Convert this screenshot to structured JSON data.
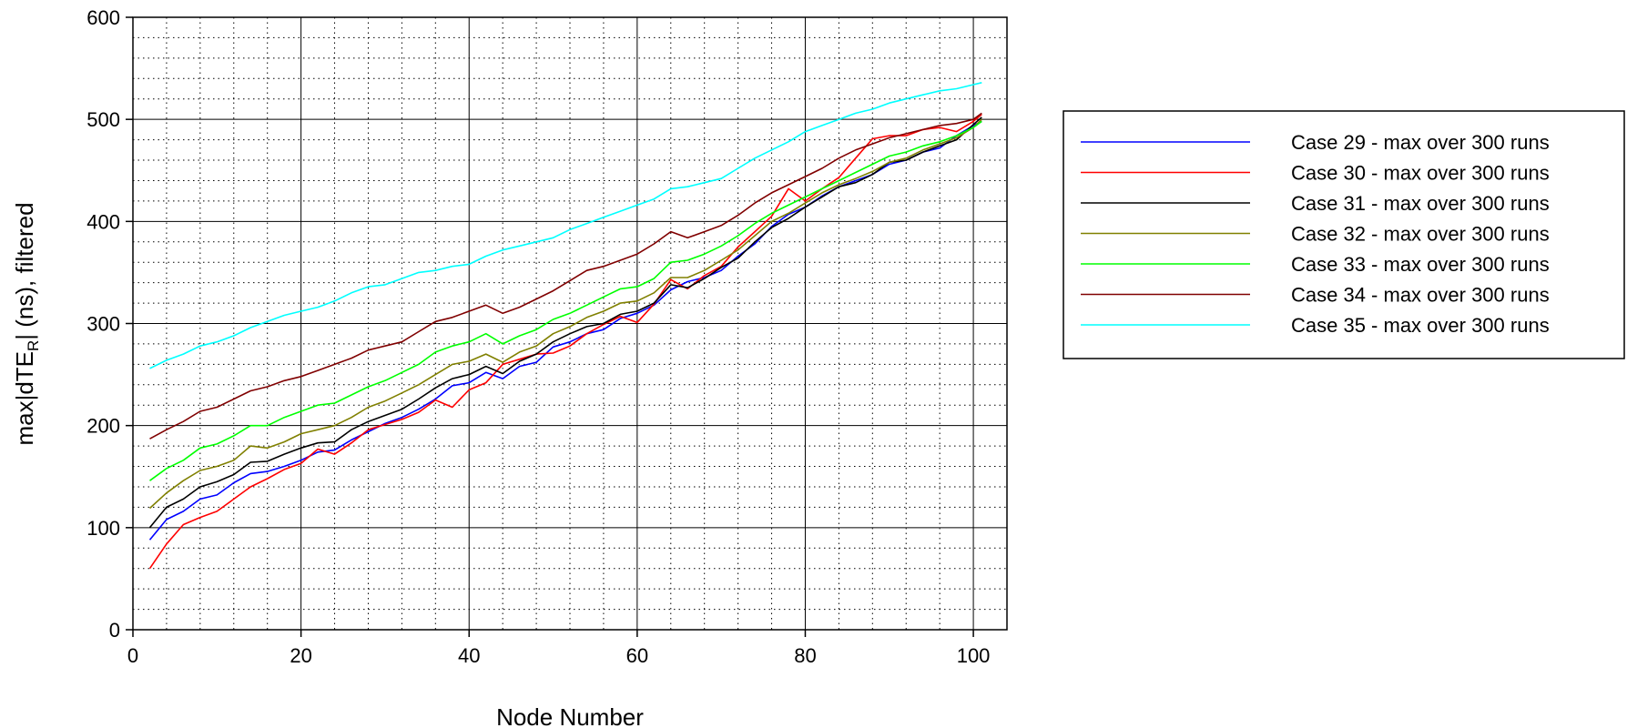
{
  "chart_data": {
    "type": "line",
    "xlabel": "Node Number",
    "ylabel": {
      "prefix": "max|dTE",
      "subscript": "R",
      "suffix": "| (ns), filtered"
    },
    "xlim": [
      0,
      104
    ],
    "ylim": [
      0,
      600
    ],
    "xticks": [
      0,
      20,
      40,
      60,
      80,
      100
    ],
    "yticks": [
      0,
      100,
      200,
      300,
      400,
      500,
      600
    ],
    "x_minor_step": 4,
    "y_minor_step": 20,
    "grid": true,
    "legend_position": "right",
    "x": [
      2,
      4,
      6,
      8,
      10,
      12,
      14,
      16,
      18,
      20,
      22,
      24,
      26,
      28,
      30,
      32,
      34,
      36,
      38,
      40,
      42,
      44,
      46,
      48,
      50,
      52,
      54,
      56,
      58,
      60,
      62,
      64,
      66,
      68,
      70,
      72,
      74,
      76,
      78,
      80,
      82,
      84,
      86,
      88,
      90,
      92,
      94,
      96,
      98,
      100,
      101
    ],
    "series": [
      {
        "name": "Case 29 - max over 300 runs",
        "color": "#0000ff",
        "values": [
          88,
          108,
          116,
          128,
          132,
          144,
          153,
          155,
          160,
          166,
          174,
          176,
          186,
          194,
          202,
          208,
          216,
          226,
          239,
          242,
          252,
          246,
          258,
          262,
          277,
          282,
          290,
          294,
          305,
          310,
          318,
          333,
          341,
          345,
          352,
          366,
          378,
          395,
          407,
          414,
          425,
          434,
          440,
          446,
          456,
          460,
          468,
          472,
          484,
          494,
          498
        ]
      },
      {
        "name": "Case 30 - max over 300 runs",
        "color": "#ff0000",
        "values": [
          60,
          84,
          103,
          110,
          116,
          128,
          140,
          148,
          157,
          163,
          177,
          172,
          183,
          196,
          201,
          206,
          213,
          225,
          218,
          235,
          242,
          260,
          265,
          270,
          271,
          278,
          290,
          299,
          307,
          301,
          319,
          343,
          334,
          347,
          356,
          375,
          390,
          405,
          432,
          420,
          432,
          443,
          462,
          481,
          484,
          484,
          490,
          492,
          488,
          498,
          505
        ]
      },
      {
        "name": "Case 31 - max over 300 runs",
        "color": "#000000",
        "values": [
          100,
          120,
          128,
          140,
          145,
          152,
          164,
          165,
          172,
          178,
          183,
          184,
          196,
          204,
          210,
          216,
          226,
          237,
          246,
          250,
          258,
          251,
          263,
          270,
          282,
          290,
          297,
          300,
          309,
          312,
          320,
          338,
          335,
          344,
          355,
          364,
          380,
          394,
          403,
          414,
          424,
          434,
          438,
          446,
          458,
          460,
          468,
          474,
          480,
          495,
          502
        ]
      },
      {
        "name": "Case 32 - max over 300 runs",
        "color": "#808000",
        "values": [
          119,
          134,
          146,
          156,
          160,
          166,
          180,
          178,
          184,
          192,
          196,
          200,
          208,
          218,
          224,
          232,
          240,
          250,
          260,
          263,
          270,
          262,
          272,
          278,
          290,
          297,
          306,
          312,
          320,
          322,
          330,
          345,
          345,
          352,
          362,
          372,
          386,
          400,
          408,
          418,
          428,
          436,
          442,
          449,
          458,
          462,
          470,
          476,
          482,
          492,
          500
        ]
      },
      {
        "name": "Case 33 - max over 300 runs",
        "color": "#00ff00",
        "values": [
          146,
          158,
          166,
          178,
          182,
          190,
          200,
          200,
          208,
          214,
          220,
          222,
          230,
          238,
          244,
          252,
          260,
          272,
          278,
          282,
          290,
          280,
          288,
          294,
          304,
          310,
          318,
          326,
          334,
          336,
          344,
          360,
          362,
          368,
          376,
          386,
          398,
          408,
          416,
          424,
          432,
          440,
          448,
          456,
          464,
          468,
          474,
          478,
          484,
          492,
          498
        ]
      },
      {
        "name": "Case 34 - max over 300 runs",
        "color": "#800000",
        "values": [
          187,
          196,
          204,
          214,
          218,
          226,
          234,
          238,
          244,
          248,
          254,
          260,
          266,
          274,
          278,
          282,
          292,
          302,
          306,
          312,
          318,
          310,
          316,
          324,
          332,
          342,
          352,
          356,
          362,
          368,
          378,
          390,
          384,
          390,
          396,
          406,
          418,
          428,
          436,
          444,
          452,
          462,
          470,
          476,
          482,
          486,
          490,
          494,
          496,
          500,
          506
        ]
      },
      {
        "name": "Case 35 - max over 300 runs",
        "color": "#00ffff",
        "values": [
          256,
          264,
          270,
          278,
          282,
          288,
          296,
          302,
          308,
          312,
          316,
          322,
          330,
          336,
          338,
          344,
          350,
          352,
          356,
          358,
          366,
          372,
          376,
          380,
          384,
          392,
          398,
          404,
          410,
          416,
          422,
          432,
          434,
          438,
          442,
          452,
          462,
          470,
          478,
          488,
          494,
          500,
          506,
          510,
          516,
          520,
          524,
          528,
          530,
          534,
          536
        ]
      }
    ]
  }
}
